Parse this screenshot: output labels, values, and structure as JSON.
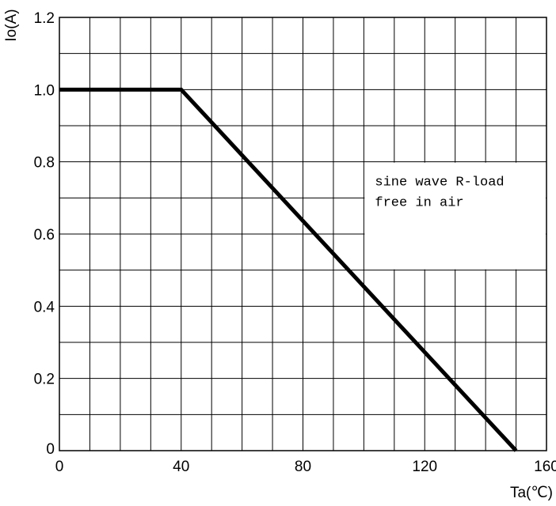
{
  "chart_data": {
    "type": "line",
    "xlabel": "Ta(℃)",
    "ylabel": "Io(A)",
    "xlim": [
      0,
      160
    ],
    "ylim": [
      0,
      1.2
    ],
    "x_ticks": [
      "0",
      "40",
      "80",
      "120",
      "160"
    ],
    "y_ticks": [
      "0",
      "0.2",
      "0.4",
      "0.6",
      "0.8",
      "1.0",
      "1.2"
    ],
    "grid": true,
    "series": [
      {
        "x": [
          0,
          40,
          150
        ],
        "y": [
          1.0,
          1.0,
          0.0
        ]
      }
    ],
    "annotation": [
      "sine wave R-load",
      "free in air"
    ]
  }
}
